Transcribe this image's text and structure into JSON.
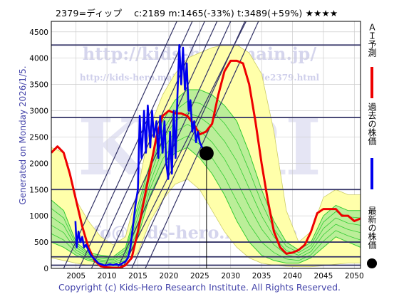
{
  "header": {
    "title": "2379=ディップ　 c:2189  m:1465(-33%)  t:3489(+59%)  ★★★★"
  },
  "side_label": "Generated on Monday 2026/1/5.",
  "footer": {
    "copyright": "Copyright (c) Kids-Hero Research Institute. All Rights Reserved."
  },
  "legend": {
    "forecast": "ＡＩ予測",
    "past": "過去の株価",
    "latest": "最新の株価"
  },
  "watermark": {
    "url1": "http://kids-hero.main.jp/",
    "url2": "http://kids-hero.main.jp/cgi/stocks/code2379.html",
    "big": "KHRI",
    "url3": "info@kids-hero.main.jp"
  },
  "colors": {
    "forecast": "#ee0000",
    "past": "#0000ee",
    "band": "#33cc33",
    "band_fill": "#bbee99",
    "envelope_fill": "#ffffaa",
    "diag": "#333366",
    "hline": "#333366",
    "grid": "#cccccc"
  },
  "chart_data": {
    "type": "line",
    "title": "2379=ディップ　 c:2189  m:1465(-33%)  t:3489(+59%)  ★★★★",
    "xlim": [
      2001,
      2051
    ],
    "ylim": [
      0,
      4700
    ],
    "x_ticks": [
      2005,
      2010,
      2015,
      2020,
      2025,
      2030,
      2035,
      2040,
      2045,
      2050
    ],
    "y_ticks": [
      0,
      500,
      1000,
      1500,
      2000,
      2500,
      3000,
      3500,
      4000,
      4500
    ],
    "grid": true,
    "current": {
      "x": 2026.1,
      "y": 2189,
      "label": "c:2189"
    },
    "hlines": [
      4250,
      2870,
      1500,
      500,
      220,
      60
    ],
    "diagonal_lines": [
      {
        "x1": 2003,
        "y1": 0,
        "x2": 2021.3,
        "y2": 4700
      },
      {
        "x1": 2005.5,
        "y1": 0,
        "x2": 2023.8,
        "y2": 4700
      },
      {
        "x1": 2007.5,
        "y1": 0,
        "x2": 2025.8,
        "y2": 4700
      },
      {
        "x1": 2009.5,
        "y1": 0,
        "x2": 2027.8,
        "y2": 4700
      },
      {
        "x1": 2011.7,
        "y1": 0,
        "x2": 2030.0,
        "y2": 4700
      },
      {
        "x1": 2014.0,
        "y1": 0,
        "x2": 2032.3,
        "y2": 4700
      },
      {
        "x1": 2016.2,
        "y1": 0,
        "x2": 2034.5,
        "y2": 4700
      },
      {
        "x1": 2012.5,
        "y1": 0,
        "x2": 2032.5,
        "y2": 4700
      }
    ],
    "envelope_upper": [
      [
        2001,
        2300
      ],
      [
        2003,
        2200
      ],
      [
        2005,
        1300
      ],
      [
        2007,
        900
      ],
      [
        2009,
        600
      ],
      [
        2011,
        450
      ],
      [
        2013,
        600
      ],
      [
        2015,
        1500
      ],
      [
        2017,
        2700
      ],
      [
        2019,
        3300
      ],
      [
        2021,
        3700
      ],
      [
        2023,
        4000
      ],
      [
        2025,
        4100
      ],
      [
        2027,
        4200
      ],
      [
        2029,
        4250
      ],
      [
        2031,
        4250
      ],
      [
        2033,
        4100
      ],
      [
        2035,
        3700
      ],
      [
        2037,
        2600
      ],
      [
        2039,
        1100
      ],
      [
        2041,
        500
      ],
      [
        2043,
        700
      ],
      [
        2045,
        1350
      ],
      [
        2047,
        1500
      ],
      [
        2049,
        1400
      ],
      [
        2051,
        1400
      ]
    ],
    "envelope_lower": [
      [
        2001,
        200
      ],
      [
        2003,
        150
      ],
      [
        2005,
        100
      ],
      [
        2007,
        60
      ],
      [
        2009,
        40
      ],
      [
        2011,
        30
      ],
      [
        2013,
        60
      ],
      [
        2015,
        300
      ],
      [
        2017,
        900
      ],
      [
        2019,
        1300
      ],
      [
        2021,
        1600
      ],
      [
        2023,
        1700
      ],
      [
        2025,
        1500
      ],
      [
        2027,
        1100
      ],
      [
        2029,
        700
      ],
      [
        2031,
        400
      ],
      [
        2033,
        200
      ],
      [
        2035,
        100
      ],
      [
        2037,
        60
      ],
      [
        2039,
        40
      ],
      [
        2041,
        30
      ],
      [
        2043,
        30
      ],
      [
        2045,
        50
      ],
      [
        2047,
        80
      ],
      [
        2049,
        100
      ],
      [
        2051,
        100
      ]
    ],
    "band_upper": [
      [
        2001,
        1300
      ],
      [
        2003,
        1100
      ],
      [
        2005,
        500
      ],
      [
        2007,
        300
      ],
      [
        2009,
        250
      ],
      [
        2011,
        220
      ],
      [
        2013,
        400
      ],
      [
        2015,
        1200
      ],
      [
        2017,
        2000
      ],
      [
        2019,
        2800
      ],
      [
        2021,
        3200
      ],
      [
        2023,
        3400
      ],
      [
        2025,
        3400
      ],
      [
        2027,
        3300
      ],
      [
        2029,
        3100
      ],
      [
        2031,
        2800
      ],
      [
        2033,
        2200
      ],
      [
        2035,
        1500
      ],
      [
        2037,
        900
      ],
      [
        2039,
        500
      ],
      [
        2041,
        350
      ],
      [
        2043,
        500
      ],
      [
        2045,
        1000
      ],
      [
        2047,
        1200
      ],
      [
        2049,
        1100
      ],
      [
        2051,
        1100
      ]
    ],
    "band_lower": [
      [
        2001,
        500
      ],
      [
        2003,
        400
      ],
      [
        2005,
        250
      ],
      [
        2007,
        150
      ],
      [
        2009,
        100
      ],
      [
        2011,
        80
      ],
      [
        2013,
        150
      ],
      [
        2015,
        600
      ],
      [
        2017,
        1400
      ],
      [
        2019,
        1900
      ],
      [
        2021,
        2200
      ],
      [
        2023,
        2300
      ],
      [
        2025,
        2100
      ],
      [
        2027,
        1800
      ],
      [
        2029,
        1400
      ],
      [
        2031,
        900
      ],
      [
        2033,
        500
      ],
      [
        2035,
        250
      ],
      [
        2037,
        150
      ],
      [
        2039,
        100
      ],
      [
        2041,
        100
      ],
      [
        2043,
        200
      ],
      [
        2045,
        400
      ],
      [
        2047,
        600
      ],
      [
        2049,
        500
      ],
      [
        2051,
        400
      ]
    ],
    "series": [
      {
        "name": "ＡＩ予測",
        "color": "#ee0000",
        "points": [
          [
            2001,
            2200
          ],
          [
            2002,
            2320
          ],
          [
            2003,
            2200
          ],
          [
            2004,
            1800
          ],
          [
            2005,
            1300
          ],
          [
            2006,
            800
          ],
          [
            2007,
            400
          ],
          [
            2008,
            150
          ],
          [
            2009,
            40
          ],
          [
            2010,
            20
          ],
          [
            2011,
            10
          ],
          [
            2012,
            10
          ],
          [
            2013,
            60
          ],
          [
            2014,
            200
          ],
          [
            2015,
            700
          ],
          [
            2016,
            1300
          ],
          [
            2017,
            1900
          ],
          [
            2018,
            2500
          ],
          [
            2019,
            2900
          ],
          [
            2020,
            3000
          ],
          [
            2021,
            2950
          ],
          [
            2022,
            2950
          ],
          [
            2023,
            2900
          ],
          [
            2024,
            2750
          ],
          [
            2025,
            2550
          ],
          [
            2026,
            2600
          ],
          [
            2027,
            2750
          ],
          [
            2028,
            3300
          ],
          [
            2029,
            3750
          ],
          [
            2030,
            3950
          ],
          [
            2031,
            3950
          ],
          [
            2032,
            3900
          ],
          [
            2033,
            3500
          ],
          [
            2034,
            2800
          ],
          [
            2035,
            2000
          ],
          [
            2036,
            1300
          ],
          [
            2037,
            700
          ],
          [
            2038,
            400
          ],
          [
            2039,
            280
          ],
          [
            2040,
            300
          ],
          [
            2041,
            350
          ],
          [
            2042,
            450
          ],
          [
            2043,
            700
          ],
          [
            2044,
            1050
          ],
          [
            2045,
            1130
          ],
          [
            2046,
            1130
          ],
          [
            2047,
            1130
          ],
          [
            2048,
            1000
          ],
          [
            2049,
            1000
          ],
          [
            2050,
            900
          ],
          [
            2051,
            950
          ]
        ]
      },
      {
        "name": "過去の株価",
        "color": "#0000ee",
        "points": [
          [
            2004.9,
            900
          ],
          [
            2005.1,
            400
          ],
          [
            2005.4,
            700
          ],
          [
            2005.7,
            500
          ],
          [
            2006,
            600
          ],
          [
            2006.3,
            400
          ],
          [
            2006.6,
            450
          ],
          [
            2007,
            350
          ],
          [
            2007.4,
            250
          ],
          [
            2007.8,
            200
          ],
          [
            2008.2,
            150
          ],
          [
            2008.6,
            100
          ],
          [
            2009,
            80
          ],
          [
            2009.5,
            60
          ],
          [
            2010,
            60
          ],
          [
            2010.5,
            80
          ],
          [
            2011,
            60
          ],
          [
            2011.5,
            80
          ],
          [
            2012,
            60
          ],
          [
            2012.5,
            100
          ],
          [
            2013,
            130
          ],
          [
            2013.4,
            200
          ],
          [
            2013.8,
            400
          ],
          [
            2014.2,
            800
          ],
          [
            2014.6,
            1200
          ],
          [
            2015,
            1500
          ],
          [
            2015.3,
            2900
          ],
          [
            2015.6,
            2100
          ],
          [
            2016,
            3000
          ],
          [
            2016.3,
            2200
          ],
          [
            2016.6,
            3100
          ],
          [
            2017,
            2300
          ],
          [
            2017.3,
            3000
          ],
          [
            2017.6,
            2500
          ],
          [
            2018,
            2800
          ],
          [
            2018.3,
            2100
          ],
          [
            2018.6,
            2900
          ],
          [
            2019,
            2200
          ],
          [
            2019.3,
            2800
          ],
          [
            2019.6,
            2000
          ],
          [
            2019.9,
            1700
          ],
          [
            2020.2,
            2600
          ],
          [
            2020.5,
            1800
          ],
          [
            2020.8,
            3000
          ],
          [
            2021.1,
            2100
          ],
          [
            2021.4,
            3300
          ],
          [
            2021.7,
            4250
          ],
          [
            2022,
            3500
          ],
          [
            2022.3,
            4200
          ],
          [
            2022.6,
            3400
          ],
          [
            2022.9,
            3900
          ],
          [
            2023.2,
            3000
          ],
          [
            2023.5,
            3200
          ],
          [
            2023.8,
            2600
          ],
          [
            2024.1,
            2800
          ],
          [
            2024.4,
            2400
          ],
          [
            2024.7,
            2600
          ],
          [
            2025,
            2400
          ],
          [
            2025.4,
            2300
          ],
          [
            2025.8,
            2200
          ],
          [
            2026.1,
            2189
          ]
        ]
      }
    ]
  }
}
